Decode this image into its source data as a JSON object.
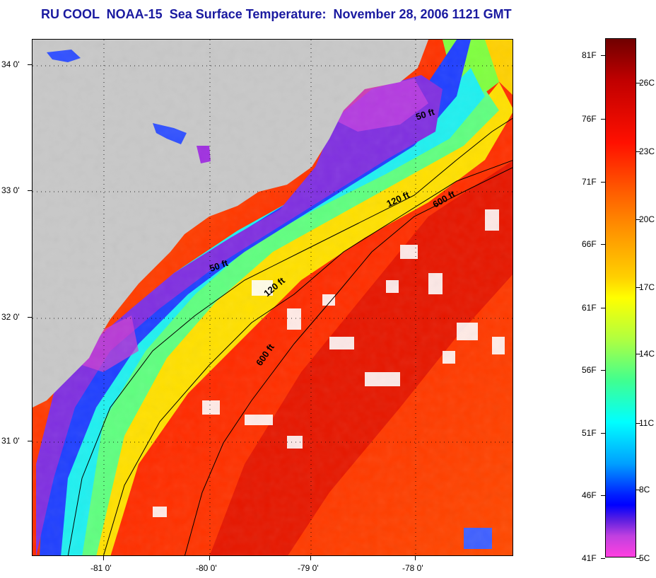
{
  "title": "RU COOL  NOAA-15  Sea Surface Temperature:  November 28, 2006 1121 GMT",
  "map": {
    "lat_labels": [
      "34 0'",
      "33 0'",
      "32 0'",
      "31 0'"
    ],
    "lon_labels": [
      "-81 0'",
      "-80 0'",
      "-79 0'",
      "-78 0'"
    ],
    "contours": [
      "50 ft",
      "50 ft",
      "120 ft",
      "120 ft",
      "600 ft",
      "600 ft"
    ],
    "colors": {
      "land": "#c8c8c8",
      "cold": "#ff40d8",
      "purple": "#8020e0",
      "blue": "#2030ff",
      "cyan": "#00ffff",
      "green": "#40ff80",
      "yellow": "#ffff00",
      "orange": "#ff7a00",
      "red": "#ff2000",
      "darkred": "#c00000"
    }
  },
  "colorbar": {
    "fahrenheit_labels": [
      "81F",
      "76F",
      "71F",
      "66F",
      "61F",
      "56F",
      "51F",
      "46F",
      "41F"
    ],
    "celsius_labels": [
      "26C",
      "23C",
      "20C",
      "17C",
      "14C",
      "11C",
      "8C",
      "5C"
    ]
  }
}
